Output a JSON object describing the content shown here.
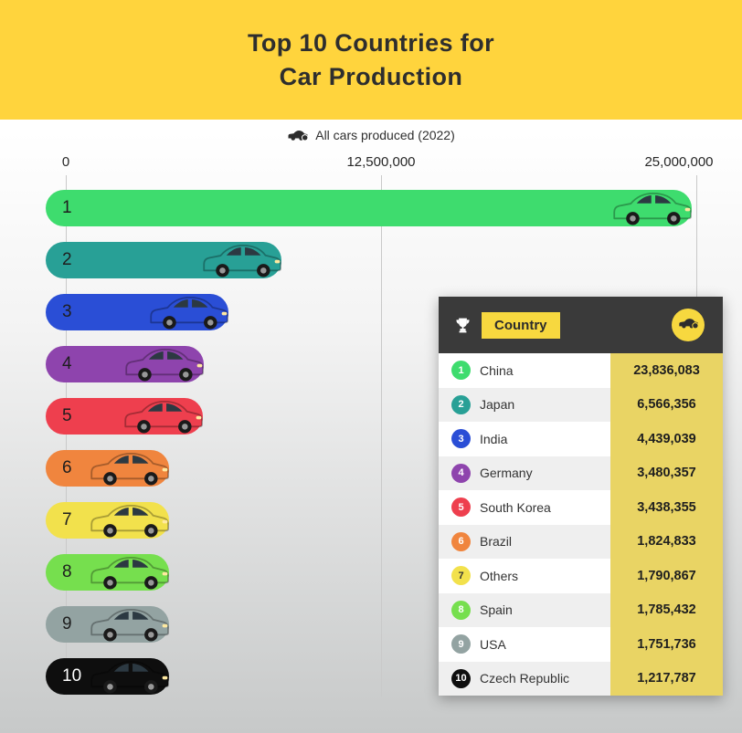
{
  "header": {
    "title_line1": "Top 10 Countries for",
    "title_line2": "Car Production",
    "bg_color": "#ffd43d"
  },
  "legend": {
    "label": "All cars produced (2022)",
    "icon": "car-icon"
  },
  "chart_data": {
    "type": "bar",
    "orientation": "horizontal",
    "title": "Top 10 Countries for Car Production",
    "subtitle": "All cars produced (2022)",
    "xlim": [
      0,
      25000000
    ],
    "tick_labels": [
      "0",
      "12,500,000",
      "25,000,000"
    ],
    "grid": true,
    "categories": [
      "China",
      "Japan",
      "India",
      "Germany",
      "South Korea",
      "Brazil",
      "Others",
      "Spain",
      "USA",
      "Czech Republic"
    ],
    "values": [
      23836083,
      6566356,
      4439039,
      3480357,
      3438355,
      1824833,
      1790867,
      1785432,
      1751736,
      1217787
    ],
    "ranks": [
      1,
      2,
      3,
      4,
      5,
      6,
      7,
      8,
      9,
      10
    ],
    "bar_colors": [
      "#3edc6e",
      "#28a096",
      "#2a4ed6",
      "#8e44ad",
      "#ee3f4e",
      "#f0853e",
      "#f2e14c",
      "#76df4e",
      "#93a3a2",
      "#0e0e0e"
    ],
    "rank_label_colors": [
      "#1e1e1e",
      "#1e1e1e",
      "#1e1e1e",
      "#1e1e1e",
      "#1e1e1e",
      "#1e1e1e",
      "#1e1e1e",
      "#1e1e1e",
      "#1e1e1e",
      "#ffffff"
    ]
  },
  "table": {
    "header": {
      "country_label": "Country"
    },
    "value_bg": "#e9d464",
    "rows": [
      {
        "rank": "1",
        "country": "China",
        "value": "23,836,083",
        "badge_color": "#3edc6e",
        "rank_color": "#ffffff"
      },
      {
        "rank": "2",
        "country": "Japan",
        "value": "6,566,356",
        "badge_color": "#28a096",
        "rank_color": "#ffffff"
      },
      {
        "rank": "3",
        "country": "India",
        "value": "4,439,039",
        "badge_color": "#2a4ed6",
        "rank_color": "#ffffff"
      },
      {
        "rank": "4",
        "country": "Germany",
        "value": "3,480,357",
        "badge_color": "#8e44ad",
        "rank_color": "#ffffff"
      },
      {
        "rank": "5",
        "country": "South Korea",
        "value": "3,438,355",
        "badge_color": "#ee3f4e",
        "rank_color": "#ffffff"
      },
      {
        "rank": "6",
        "country": "Brazil",
        "value": "1,824,833",
        "badge_color": "#f0853e",
        "rank_color": "#ffffff"
      },
      {
        "rank": "7",
        "country": "Others",
        "value": "1,790,867",
        "badge_color": "#f2e14c",
        "rank_color": "#333333"
      },
      {
        "rank": "8",
        "country": "Spain",
        "value": "1,785,432",
        "badge_color": "#76df4e",
        "rank_color": "#ffffff"
      },
      {
        "rank": "9",
        "country": "USA",
        "value": "1,751,736",
        "badge_color": "#93a3a2",
        "rank_color": "#ffffff"
      },
      {
        "rank": "10",
        "country": "Czech Republic",
        "value": "1,217,787",
        "badge_color": "#0e0e0e",
        "rank_color": "#ffffff"
      }
    ]
  }
}
